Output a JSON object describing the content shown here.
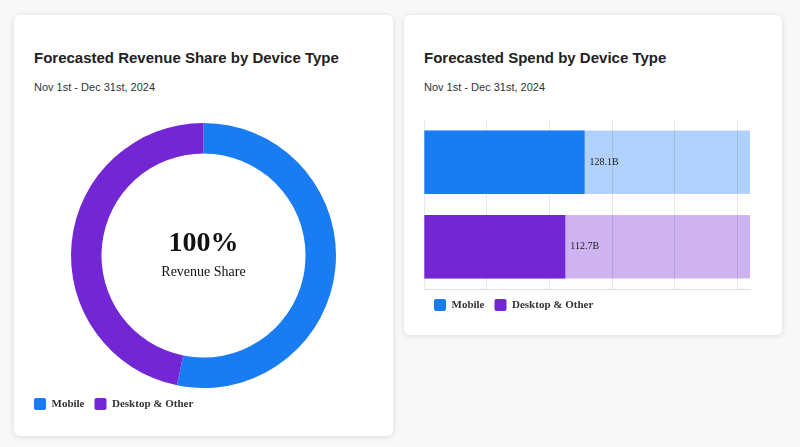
{
  "chart_data": [
    {
      "type": "doughnut",
      "title": "Forecasted Revenue Share by Device Type",
      "subtitle": "Nov 1st - Dec 31st, 2024",
      "categories": [
        "Mobile",
        "Desktop & Other"
      ],
      "values": [
        53.2,
        46.8
      ],
      "colors": [
        "#1a7cf3",
        "#7226d4"
      ],
      "annotations": [
        "100%",
        "Revenue Share"
      ],
      "legend": "bottom-left"
    },
    {
      "type": "bar",
      "orientation": "horizontal",
      "title": "Forecasted Spend by Device Type",
      "subtitle": "Nov 1st - Dec 31st, 2024",
      "categories": [
        "Mobile",
        "Desktop & Other"
      ],
      "values": [
        128.1,
        112.7
      ],
      "value_labels": [
        "128.1B",
        "112.7B"
      ],
      "colors": [
        "#1a7cf3",
        "#7226d4"
      ],
      "xlim": [
        0,
        260
      ],
      "xticks": [
        0,
        50,
        100,
        150,
        200,
        250
      ],
      "tick_labels": false,
      "grid": true,
      "data_labels": true,
      "legend": "bottom-left"
    }
  ]
}
